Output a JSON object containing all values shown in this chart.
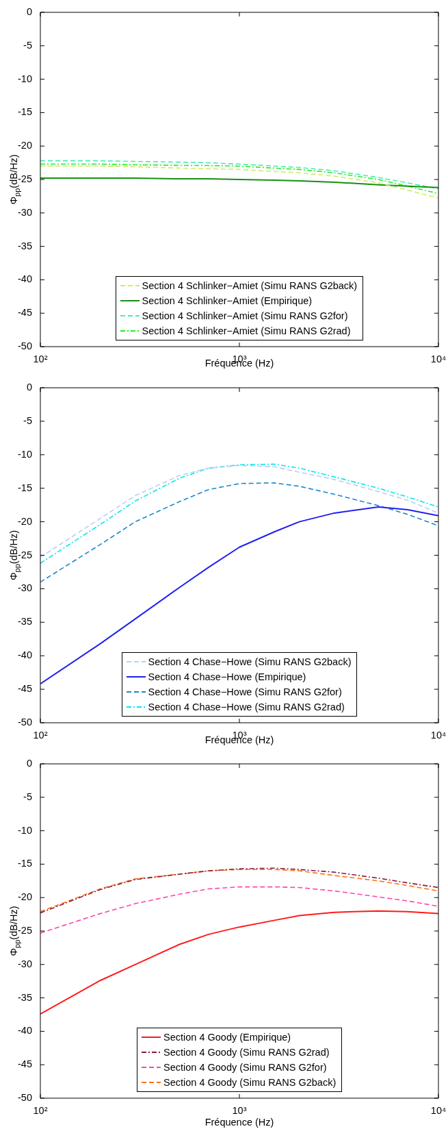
{
  "chart_data": [
    {
      "type": "line",
      "xlabel": "Fréquence (Hz)",
      "ylabel": "Φ$_{pp}$(dB/Hz)",
      "log": "x",
      "grid": false,
      "legend": "bottom",
      "marker": "none",
      "x": [
        100,
        200,
        300,
        500,
        700,
        1000,
        1500,
        2000,
        3000,
        5000,
        7000,
        10000
      ],
      "xlim": [
        100,
        10000
      ],
      "xticks": [
        {
          "value": 100,
          "label": "10²"
        },
        {
          "value": 1000,
          "label": "10³"
        },
        {
          "value": 10000,
          "label": "10⁴"
        }
      ],
      "ylim": [
        -50,
        0
      ],
      "yticks": [
        -50,
        -45,
        -40,
        -35,
        -30,
        -25,
        -20,
        -15,
        -10,
        -5,
        0
      ],
      "series": [
        {
          "name": "Section 4 Schlinker−Amiet (Simu RANS G2back)",
          "color": "#ccee66",
          "line_style": "dashed",
          "values": [
            -23.0,
            -23.0,
            -23.1,
            -23.3,
            -23.4,
            -23.5,
            -23.8,
            -24.0,
            -24.5,
            -25.5,
            -26.6,
            -27.8
          ]
        },
        {
          "name": "Section 4 Schlinker−Amiet (Empirique)",
          "color": "#159015",
          "line_style": "solid",
          "values": [
            -24.8,
            -24.8,
            -24.8,
            -24.9,
            -24.9,
            -25.0,
            -25.1,
            -25.2,
            -25.4,
            -25.8,
            -26.0,
            -26.2
          ]
        },
        {
          "name": "Section 4 Schlinker−Amiet (Simu RANS G2for)",
          "color": "#40f0b0",
          "line_style": "dashed",
          "values": [
            -22.2,
            -22.2,
            -22.3,
            -22.4,
            -22.5,
            -22.7,
            -23.0,
            -23.2,
            -23.7,
            -24.7,
            -25.5,
            -26.4
          ]
        },
        {
          "name": "Section 4 Schlinker−Amiet (Simu RANS G2rad)",
          "color": "#22ee22",
          "line_style": "dashdot",
          "values": [
            -22.7,
            -22.7,
            -22.8,
            -22.9,
            -22.9,
            -23.0,
            -23.3,
            -23.5,
            -24.0,
            -25.0,
            -26.0,
            -27.1
          ]
        }
      ]
    },
    {
      "type": "line",
      "xlabel": "Fréquence (Hz)",
      "ylabel": "Φ$_{pp}$(dB/Hz)",
      "log": "x",
      "grid": false,
      "legend": "bottom",
      "marker": "none",
      "x": [
        100,
        200,
        300,
        500,
        700,
        1000,
        1500,
        2000,
        3000,
        5000,
        7000,
        10000
      ],
      "xlim": [
        100,
        10000
      ],
      "xticks": [
        {
          "value": 100,
          "label": "10²"
        },
        {
          "value": 1000,
          "label": "10³"
        },
        {
          "value": 10000,
          "label": "10⁴"
        }
      ],
      "ylim": [
        -50,
        0
      ],
      "yticks": [
        -50,
        -45,
        -40,
        -35,
        -30,
        -25,
        -20,
        -15,
        -10,
        -5,
        0
      ],
      "series": [
        {
          "name": "Section 4 Chase−Howe (Simu RANS G2back)",
          "color": "#b8d0f0",
          "line_style": "dashed",
          "values": [
            -25.3,
            -19.5,
            -16.1,
            -13.1,
            -12.0,
            -11.6,
            -11.8,
            -12.6,
            -13.7,
            -15.5,
            -16.8,
            -18.7
          ]
        },
        {
          "name": "Section 4 Chase−Howe (Empirique)",
          "color": "#2020ee",
          "line_style": "solid",
          "values": [
            -44.2,
            -38.2,
            -34.5,
            -29.8,
            -26.8,
            -23.8,
            -21.5,
            -20.0,
            -18.7,
            -17.8,
            -18.2,
            -19.1
          ]
        },
        {
          "name": "Section 4 Chase−Howe (Simu RANS G2for)",
          "color": "#1a88cc",
          "line_style": "dashed",
          "values": [
            -29.0,
            -23.4,
            -20.0,
            -17.0,
            -15.2,
            -14.3,
            -14.2,
            -14.7,
            -15.9,
            -17.6,
            -18.9,
            -20.6
          ]
        },
        {
          "name": "Section 4 Chase−Howe (Simu RANS G2rad)",
          "color": "#00e8ee",
          "line_style": "dashdot",
          "values": [
            -26.2,
            -20.4,
            -16.9,
            -13.5,
            -12.0,
            -11.5,
            -11.4,
            -12.0,
            -13.3,
            -15.0,
            -16.3,
            -17.8
          ]
        }
      ]
    },
    {
      "type": "line",
      "xlabel": "Fréquence (Hz)",
      "ylabel": "Φ$_{pp}$(dB/Hz)",
      "log": "x",
      "grid": false,
      "legend": "bottom",
      "marker": "none",
      "x": [
        100,
        200,
        300,
        500,
        700,
        1000,
        1500,
        2000,
        3000,
        5000,
        7000,
        10000
      ],
      "xlim": [
        100,
        10000
      ],
      "xticks": [
        {
          "value": 100,
          "label": "10²"
        },
        {
          "value": 1000,
          "label": "10³"
        },
        {
          "value": 10000,
          "label": "10⁴"
        }
      ],
      "ylim": [
        -50,
        0
      ],
      "yticks": [
        -50,
        -45,
        -40,
        -35,
        -30,
        -25,
        -20,
        -15,
        -10,
        -5,
        0
      ],
      "series": [
        {
          "name": "Section 4 Goody (Empirique)",
          "color": "#ff1a1a",
          "line_style": "solid",
          "values": [
            -37.4,
            -32.4,
            -30.0,
            -27.0,
            -25.5,
            -24.4,
            -23.4,
            -22.7,
            -22.2,
            -22.0,
            -22.1,
            -22.4
          ]
        },
        {
          "name": "Section 4 Goody (Simu RANS G2rad)",
          "color": "#8b1a40",
          "line_style": "dashdot",
          "values": [
            -22.3,
            -18.8,
            -17.3,
            -16.5,
            -16.0,
            -15.7,
            -15.6,
            -15.8,
            -16.2,
            -17.1,
            -17.8,
            -18.5
          ]
        },
        {
          "name": "Section 4 Goody (Simu RANS G2for)",
          "color": "#ff44aa",
          "line_style": "dashed",
          "values": [
            -25.3,
            -22.4,
            -20.9,
            -19.5,
            -18.7,
            -18.4,
            -18.4,
            -18.5,
            -19.0,
            -19.9,
            -20.5,
            -21.3
          ]
        },
        {
          "name": "Section 4 Goody (Simu RANS G2back)",
          "color": "#ff7010",
          "line_style": "dashed",
          "values": [
            -22.1,
            -18.7,
            -17.2,
            -16.5,
            -16.0,
            -15.8,
            -15.8,
            -16.0,
            -16.7,
            -17.5,
            -18.2,
            -19.0
          ]
        }
      ]
    }
  ]
}
